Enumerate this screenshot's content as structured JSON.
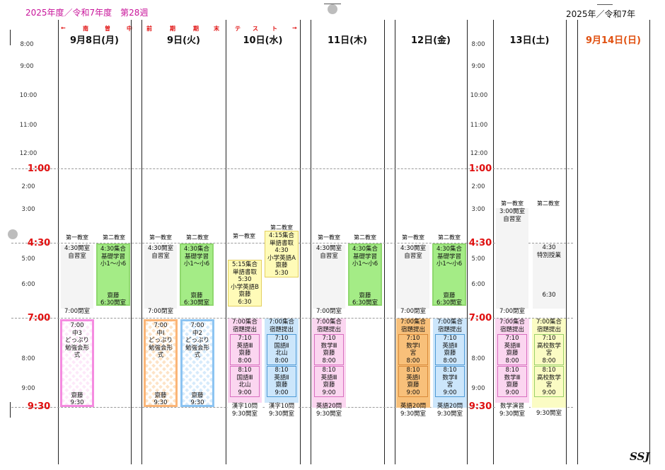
{
  "header": {
    "left_title": "2025年度／令和7年度　第28週",
    "right_title": "2025年／令和7年",
    "footer_logo": "SSJ",
    "exam_banner": [
      "←",
      "南",
      "曽",
      "中",
      "前",
      "期",
      "期",
      "末",
      "テ",
      "ス",
      "ト",
      "→"
    ]
  },
  "days": [
    {
      "label": "9月8日(月)",
      "color": "#111111"
    },
    {
      "label": "9日(火)",
      "color": "#111111"
    },
    {
      "label": "10日(水)",
      "color": "#111111"
    },
    {
      "label": "11日(木)",
      "color": "#111111"
    },
    {
      "label": "12日(金)",
      "color": "#111111"
    },
    {
      "label": "13日(土)",
      "color": "#111111"
    },
    {
      "label": "9月14日(日)",
      "color": "#e05010"
    }
  ],
  "times_small": [
    "8:00",
    "9:00",
    "10:00",
    "11:00",
    "12:00",
    "2:00",
    "3:00",
    "5:00",
    "6:00",
    "8:00",
    "9:00"
  ],
  "times_big": [
    "1:00",
    "4:30",
    "7:00",
    "9:30"
  ],
  "rooms": {
    "room1": "第一教室",
    "room2": "第二教室"
  },
  "weekday_common": {
    "room1_block": [
      "4:30開室",
      "自習室"
    ],
    "room1_close": "7:00閉室",
    "room2_block_top": [
      "4:30集合",
      "基礎学習",
      "小1～小6"
    ],
    "room2_block_bottom": [
      "齋藤",
      "6:30開室"
    ]
  },
  "wednesday": {
    "room1_block": [
      "5:15集合",
      "単語書取",
      "5:30",
      "小学英語B",
      "齋藤",
      "6:30"
    ],
    "room2_block": [
      "4:15集合",
      "単語書取",
      "4:30",
      "小学英語A",
      "齋藤",
      "5:30"
    ]
  },
  "saturday": {
    "room1_top": [
      "3:00開室",
      "自習室"
    ],
    "room1_close": "7:00閉室",
    "room2_block": [
      "4:30",
      "特別授業"
    ],
    "room2_end": "6:30"
  },
  "study_sessions": {
    "mon": [
      "7:00",
      "中3",
      "どっぷり",
      "勉強会形式",
      "齋藤",
      "9:30"
    ],
    "tue1": [
      "7:00",
      "中Ⅰ",
      "どっぷり",
      "勉強会形式",
      "齋藤",
      "9:30"
    ],
    "tue2": [
      "7:00",
      "中2",
      "どっぷり",
      "勉強会形式",
      "齋藤",
      "9:30"
    ]
  },
  "evening": {
    "wed1": {
      "head": [
        "7:00集合",
        "宿題提出"
      ],
      "cells": [
        [
          "7:10",
          "英語Ⅲ",
          "齋藤",
          "8:00"
        ],
        [
          "8:10",
          "国語Ⅲ",
          "北山",
          "9:00"
        ]
      ],
      "foot": [
        "漢字10問",
        "9:30開室"
      ]
    },
    "wed2": {
      "head": [
        "7:00集合",
        "宿題提出"
      ],
      "cells": [
        [
          "7:10",
          "国語Ⅱ",
          "北山",
          "8:00"
        ],
        [
          "8:10",
          "英語Ⅱ",
          "齋藤",
          "9:00"
        ]
      ],
      "foot": [
        "漢字10問",
        "9:30開室"
      ]
    },
    "thu1": {
      "head": [
        "7:00集合",
        "宿題提出"
      ],
      "cells": [
        [
          "7:10",
          "数学Ⅲ",
          "齋藤",
          "8:00"
        ],
        [
          "8:10",
          "英語Ⅲ",
          "齋藤",
          "9:00"
        ]
      ],
      "foot": [
        "英語20問",
        "9:30開室"
      ]
    },
    "fri1": {
      "head": [
        "7:00集合",
        "宿題提出"
      ],
      "cells": [
        [
          "7:10",
          "数学Ⅰ",
          "宮",
          "8:00"
        ],
        [
          "8:10",
          "英語Ⅰ",
          "齋藤",
          "9:00"
        ]
      ],
      "foot": [
        "英語20問",
        "9:30開室"
      ]
    },
    "fri2": {
      "head": [
        "7:00集合",
        "宿題提出"
      ],
      "cells": [
        [
          "7:10",
          "英語Ⅱ",
          "齋藤",
          "8:00"
        ],
        [
          "8:10",
          "数学Ⅱ",
          "宮",
          "9:00"
        ]
      ],
      "foot": [
        "英語20問",
        "9:30開室"
      ]
    },
    "sat1": {
      "head": [
        "7:00集合",
        "宿題提出"
      ],
      "cells": [
        [
          "7:10",
          "英語Ⅲ",
          "齋藤",
          "8:00"
        ],
        [
          "8:10",
          "数学Ⅲ",
          "齋藤",
          "9:00"
        ]
      ],
      "foot": [
        "数学演習",
        "9:30開室"
      ]
    },
    "sat2": {
      "head": [
        "7:00集合",
        "宿題提出"
      ],
      "cells": [
        [
          "7:10",
          "高校数学",
          "宮",
          "8:00"
        ],
        [
          "8:10",
          "高校数学",
          "宮",
          "9:00"
        ]
      ],
      "foot": [
        "9:30開室"
      ]
    }
  }
}
